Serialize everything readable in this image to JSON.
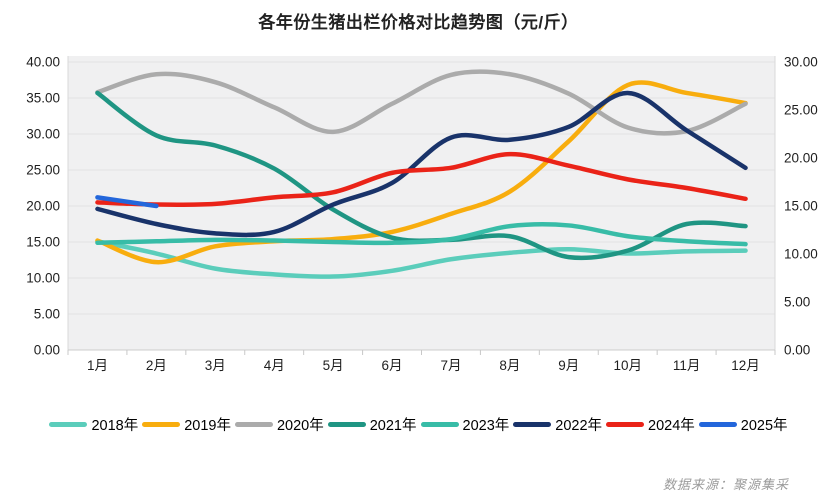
{
  "chart_data": {
    "type": "line",
    "title": "各年份生猪出栏价格对比趋势图（元/斤）",
    "source": "数据来源：聚源集采",
    "categories": [
      "1月",
      "2月",
      "3月",
      "4月",
      "5月",
      "6月",
      "7月",
      "8月",
      "9月",
      "10月",
      "11月",
      "12月"
    ],
    "y_axis_left": {
      "min": 0,
      "max": 40,
      "step": 5,
      "labels": [
        "40.00",
        "35.00",
        "30.00",
        "25.00",
        "20.00",
        "15.00",
        "10.00",
        "5.00",
        "0.00"
      ]
    },
    "y_axis_right": {
      "min": 0,
      "max": 30,
      "step": 5,
      "labels": [
        "30.00",
        "25.00",
        "20.00",
        "15.00",
        "10.00",
        "5.00",
        "0.00"
      ]
    },
    "grid": true,
    "legend_position": "bottom",
    "series": [
      {
        "name": "2018年",
        "color": "#5BCDBB",
        "values": [
          15.1,
          13.4,
          11.3,
          10.5,
          10.2,
          11.0,
          12.6,
          13.5,
          14.0,
          13.4,
          13.7,
          13.8
        ]
      },
      {
        "name": "2019年",
        "color": "#F8AD0E",
        "values": [
          15.2,
          12.2,
          14.4,
          15.1,
          15.4,
          16.4,
          18.9,
          22.0,
          29.0,
          36.8,
          35.7,
          34.3
        ]
      },
      {
        "name": "2020年",
        "color": "#ABABAB",
        "values": [
          35.8,
          38.3,
          37.2,
          33.7,
          30.3,
          34.2,
          38.2,
          38.3,
          35.6,
          30.9,
          30.4,
          34.2
        ]
      },
      {
        "name": "2021年",
        "color": "#1F9583",
        "values": [
          35.7,
          29.8,
          28.4,
          25.2,
          19.5,
          15.6,
          15.3,
          15.8,
          12.9,
          13.8,
          17.5,
          17.2
        ]
      },
      {
        "name": "2023年",
        "color": "#38BCA7",
        "values": [
          14.9,
          15.1,
          15.3,
          15.2,
          15.0,
          14.9,
          15.4,
          17.2,
          17.3,
          15.8,
          15.1,
          14.7
        ]
      },
      {
        "name": "2022年",
        "color": "#19336A",
        "values": [
          19.6,
          17.5,
          16.2,
          16.4,
          20.2,
          23.2,
          29.5,
          29.2,
          31.0,
          35.7,
          30.5,
          25.3
        ]
      },
      {
        "name": "2024年",
        "color": "#EA2318",
        "values": [
          20.5,
          20.2,
          20.3,
          21.2,
          21.9,
          24.6,
          25.3,
          27.2,
          25.6,
          23.7,
          22.5,
          21.0
        ]
      },
      {
        "name": "2025年",
        "color": "#2366DB",
        "values": [
          21.2,
          20.0,
          null,
          null,
          null,
          null,
          null,
          null,
          null,
          null,
          null,
          null
        ]
      }
    ],
    "legend_order": [
      "2018年",
      "2019年",
      "2020年",
      "2021年",
      "2023年",
      "2022年",
      "2024年",
      "2025年"
    ]
  }
}
